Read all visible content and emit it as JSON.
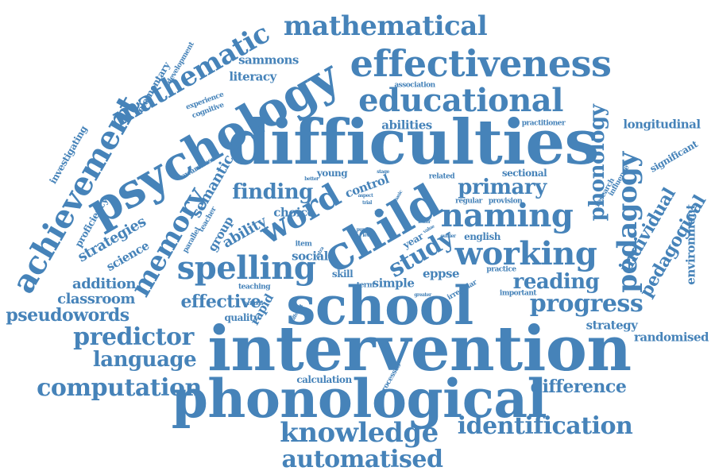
{
  "word_cloud": {
    "color": "#4683b9",
    "words": [
      {
        "id": "intervention",
        "text": "intervention"
      },
      {
        "id": "difficulties",
        "text": "difficulties"
      },
      {
        "id": "phonological",
        "text": "phonological"
      },
      {
        "id": "school",
        "text": "school"
      },
      {
        "id": "psychology",
        "text": "psychology"
      },
      {
        "id": "effectiveness",
        "text": "effectiveness"
      },
      {
        "id": "child",
        "text": "child"
      },
      {
        "id": "educational",
        "text": "educational"
      },
      {
        "id": "achievement",
        "text": "achievement"
      },
      {
        "id": "mathematical",
        "text": "mathematical"
      },
      {
        "id": "mathematic",
        "text": "mathematic"
      },
      {
        "id": "word",
        "text": "word"
      },
      {
        "id": "spelling",
        "text": "spelling"
      },
      {
        "id": "naming",
        "text": "naming"
      },
      {
        "id": "working",
        "text": "working"
      },
      {
        "id": "knowledge",
        "text": "knowledge"
      },
      {
        "id": "identification",
        "text": "identification"
      },
      {
        "id": "automatised",
        "text": "automatised"
      },
      {
        "id": "computation",
        "text": "computation"
      },
      {
        "id": "memory",
        "text": "memory"
      },
      {
        "id": "pedagogy",
        "text": "pedagogy"
      },
      {
        "id": "progress",
        "text": "progress"
      },
      {
        "id": "study",
        "text": "study"
      },
      {
        "id": "finding",
        "text": "finding"
      },
      {
        "id": "primary",
        "text": "primary"
      },
      {
        "id": "reading",
        "text": "reading"
      },
      {
        "id": "predictor",
        "text": "predictor"
      },
      {
        "id": "language",
        "text": "language"
      },
      {
        "id": "difference",
        "text": "difference"
      },
      {
        "id": "phonology",
        "text": "phonology"
      },
      {
        "id": "pedagogical",
        "text": "pedagogical"
      },
      {
        "id": "individual",
        "text": "individual"
      },
      {
        "id": "effective",
        "text": "effective"
      },
      {
        "id": "pseudowords",
        "text": "pseudowords"
      },
      {
        "id": "classroom",
        "text": "classroom"
      },
      {
        "id": "addition",
        "text": "addition"
      },
      {
        "id": "strategies",
        "text": "strategies"
      },
      {
        "id": "ability",
        "text": "ability"
      },
      {
        "id": "semantic",
        "text": "semantic"
      },
      {
        "id": "longitudinal",
        "text": "longitudinal"
      },
      {
        "id": "strategy",
        "text": "strategy"
      },
      {
        "id": "abilities",
        "text": "abilities"
      },
      {
        "id": "sammons",
        "text": "sammons"
      },
      {
        "id": "literacy",
        "text": "literacy"
      },
      {
        "id": "control",
        "text": "control"
      },
      {
        "id": "choice",
        "text": "choice"
      },
      {
        "id": "group",
        "text": "group"
      },
      {
        "id": "science",
        "text": "science"
      },
      {
        "id": "rapid",
        "text": "rapid"
      },
      {
        "id": "social",
        "text": "social"
      },
      {
        "id": "simple",
        "text": "simple"
      },
      {
        "id": "eppse",
        "text": "eppse"
      },
      {
        "id": "randomised",
        "text": "randomised"
      },
      {
        "id": "environment",
        "text": "environment"
      },
      {
        "id": "significant",
        "text": "significant"
      },
      {
        "id": "investigating",
        "text": "investigating"
      },
      {
        "id": "elementary",
        "text": "elementary"
      },
      {
        "id": "development",
        "text": "development"
      },
      {
        "id": "proficiency",
        "text": "proficiency"
      },
      {
        "id": "young",
        "text": "young"
      },
      {
        "id": "calculation",
        "text": "calculation"
      },
      {
        "id": "sectional",
        "text": "sectional"
      },
      {
        "id": "practitioner",
        "text": "practitioner"
      },
      {
        "id": "research",
        "text": "research"
      },
      {
        "id": "influence",
        "text": "influence"
      },
      {
        "id": "english",
        "text": "english"
      },
      {
        "id": "practice",
        "text": "practice"
      },
      {
        "id": "quality",
        "text": "quality"
      },
      {
        "id": "teaching",
        "text": "teaching"
      },
      {
        "id": "irregular",
        "text": "irregular"
      },
      {
        "id": "important",
        "text": "important"
      },
      {
        "id": "regular",
        "text": "regular"
      },
      {
        "id": "provision",
        "text": "provision"
      },
      {
        "id": "processes",
        "text": "processes"
      },
      {
        "id": "skill",
        "text": "skill"
      },
      {
        "id": "year",
        "text": "year"
      },
      {
        "id": "term",
        "text": "term"
      },
      {
        "id": "item",
        "text": "item"
      },
      {
        "id": "association",
        "text": "association"
      },
      {
        "id": "cognitive",
        "text": "cognitive"
      },
      {
        "id": "experience",
        "text": "experience"
      },
      {
        "id": "awareness",
        "text": "awareness"
      },
      {
        "id": "parallel",
        "text": "parallel"
      },
      {
        "id": "teacher",
        "text": "teacher"
      },
      {
        "id": "related",
        "text": "related"
      },
      {
        "id": "stage",
        "text": "stage"
      },
      {
        "id": "better",
        "text": "better"
      },
      {
        "id": "aspect",
        "text": "aspect"
      },
      {
        "id": "trial",
        "text": "trial"
      },
      {
        "id": "basic",
        "text": "basic"
      },
      {
        "id": "letter",
        "text": "letter"
      },
      {
        "id": "outlier",
        "text": "outlier"
      },
      {
        "id": "value",
        "text": "value"
      },
      {
        "id": "variation",
        "text": "variation"
      },
      {
        "id": "different",
        "text": "different"
      },
      {
        "id": "greater",
        "text": "greater"
      },
      {
        "id": "rule",
        "text": "rule"
      },
      {
        "id": "pupil",
        "text": "pupil"
      },
      {
        "id": "level",
        "text": "level"
      },
      {
        "id": "extra",
        "text": "extra"
      }
    ]
  }
}
